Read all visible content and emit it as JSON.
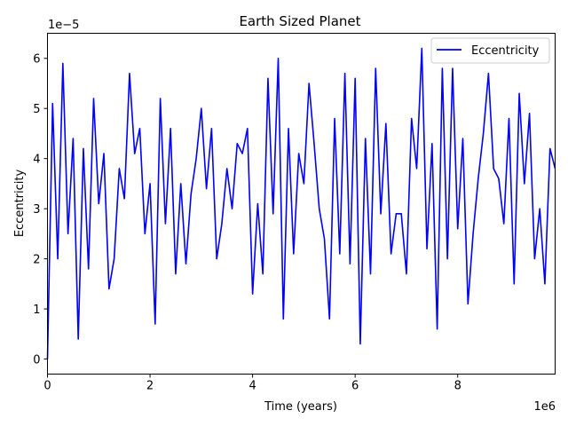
{
  "chart_data": {
    "type": "line",
    "title": "Earth Sized Planet",
    "xlabel": "Time (years)",
    "ylabel": "Eccentricity",
    "x_scale_label": "1e6",
    "y_scale_label": "1e−5",
    "xlim": [
      0,
      9.9
    ],
    "ylim": [
      -0.3,
      6.5
    ],
    "x_ticks": [
      0,
      2,
      4,
      6,
      8
    ],
    "y_ticks": [
      0,
      1,
      2,
      3,
      4,
      5,
      6
    ],
    "legend_position": "top-right",
    "grid": false,
    "series": [
      {
        "name": "Eccentricity",
        "color": "#0000ff",
        "x": [
          0,
          0.1,
          0.2,
          0.3,
          0.4,
          0.5,
          0.6,
          0.7,
          0.8,
          0.9,
          1.0,
          1.1,
          1.2,
          1.3,
          1.4,
          1.5,
          1.6,
          1.7,
          1.8,
          1.9,
          2.0,
          2.1,
          2.2,
          2.3,
          2.4,
          2.5,
          2.6,
          2.7,
          2.8,
          2.9,
          3.0,
          3.1,
          3.2,
          3.3,
          3.4,
          3.5,
          3.6,
          3.7,
          3.8,
          3.9,
          4.0,
          4.1,
          4.2,
          4.3,
          4.4,
          4.5,
          4.6,
          4.7,
          4.8,
          4.9,
          5.0,
          5.1,
          5.2,
          5.3,
          5.4,
          5.5,
          5.6,
          5.7,
          5.8,
          5.9,
          6.0,
          6.1,
          6.2,
          6.3,
          6.4,
          6.5,
          6.6,
          6.7,
          6.8,
          6.9,
          7.0,
          7.1,
          7.2,
          7.3,
          7.4,
          7.5,
          7.6,
          7.7,
          7.8,
          7.9,
          8.0,
          8.1,
          8.2,
          8.3,
          8.4,
          8.5,
          8.6,
          8.7,
          8.8,
          8.9,
          9.0,
          9.1,
          9.2,
          9.3,
          9.4,
          9.5,
          9.6,
          9.7,
          9.8,
          9.9
        ],
        "y": [
          0.0,
          5.1,
          2.0,
          5.9,
          2.5,
          4.4,
          0.4,
          4.2,
          1.8,
          5.2,
          3.1,
          4.1,
          1.4,
          2.0,
          3.8,
          3.2,
          5.7,
          4.1,
          4.6,
          2.5,
          3.5,
          0.7,
          5.2,
          2.7,
          4.6,
          1.7,
          3.5,
          1.9,
          3.3,
          4.0,
          5.0,
          3.4,
          4.6,
          2.0,
          2.7,
          3.8,
          3.0,
          4.3,
          4.1,
          4.6,
          1.3,
          3.1,
          1.7,
          5.6,
          2.9,
          6.0,
          0.8,
          4.6,
          2.1,
          4.1,
          3.5,
          5.5,
          4.3,
          3.0,
          2.4,
          0.8,
          4.8,
          2.1,
          5.7,
          1.9,
          5.6,
          0.3,
          4.4,
          1.7,
          5.8,
          2.9,
          4.7,
          2.1,
          2.9,
          2.9,
          1.7,
          4.8,
          3.8,
          6.2,
          2.2,
          4.3,
          0.6,
          5.8,
          2.0,
          5.8,
          2.6,
          4.4,
          1.1,
          2.5,
          3.6,
          4.5,
          5.7,
          3.8,
          3.6,
          2.7,
          4.8,
          1.5,
          5.3,
          3.5,
          4.9,
          2.0,
          3.0,
          1.5,
          4.2,
          3.8
        ]
      }
    ]
  }
}
